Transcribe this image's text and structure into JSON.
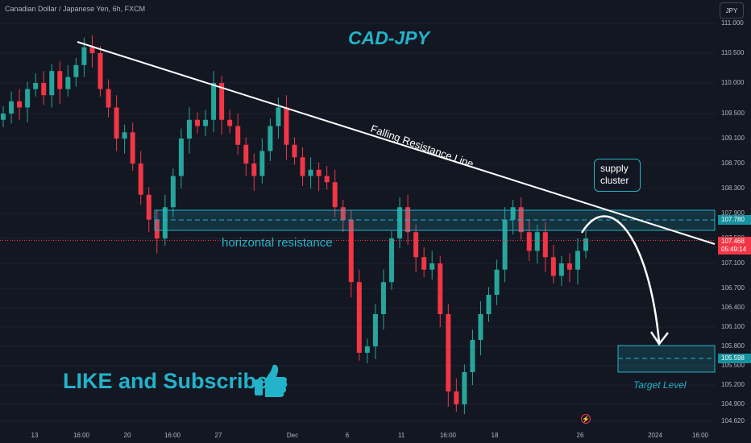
{
  "symbol_line": "Canadian Dollar / Japanese Yen, 6h, FXCM",
  "currency_button": "JPY",
  "pair_title": "CAD-JPY",
  "cta": {
    "text": "LIKE and Subscribe",
    "icon": "thumbs-up-icon"
  },
  "colors": {
    "background": "#131722",
    "up": "#26a69a",
    "down": "#f23645",
    "accent": "#22b3c9",
    "line": "#ffffff"
  },
  "chart_data": {
    "type": "candlestick",
    "title": "CAD-JPY",
    "ylim": [
      104.55,
      111.1
    ],
    "y_ticks": [
      "111.000",
      "110.500",
      "110.000",
      "109.500",
      "109.100",
      "108.700",
      "108.300",
      "107.900",
      "107.500",
      "107.100",
      "106.700",
      "106.400",
      "106.100",
      "105.800",
      "105.500",
      "105.200",
      "104.900",
      "104.620"
    ],
    "x_ticks": [
      "13",
      "16:00",
      "20",
      "16:00",
      "27",
      "Dec",
      "6",
      "11",
      "16:00",
      "18",
      "26",
      "2024",
      "16:00"
    ],
    "close_series": [
      109.5,
      109.7,
      109.6,
      109.9,
      110.0,
      109.8,
      110.2,
      109.9,
      110.1,
      110.3,
      110.6,
      110.5,
      109.9,
      109.6,
      109.1,
      109.2,
      108.7,
      108.2,
      107.8,
      107.5,
      108.0,
      108.5,
      109.1,
      109.4,
      109.3,
      109.4,
      110.0,
      109.4,
      109.3,
      109.0,
      108.7,
      108.5,
      108.9,
      109.3,
      109.6,
      109.0,
      108.8,
      108.5,
      108.6,
      108.5,
      108.4,
      108.0,
      107.8,
      106.8,
      105.7,
      105.8,
      106.3,
      106.8,
      107.5,
      108.0,
      107.6,
      107.2,
      107.0,
      107.1,
      106.3,
      105.1,
      104.9,
      105.4,
      105.9,
      106.3,
      106.6,
      107.0,
      107.8,
      108.0,
      107.6,
      107.3,
      107.6,
      107.2,
      106.9,
      107.1,
      107.0,
      107.3,
      107.5
    ],
    "last_price": "107.468",
    "countdown": "05:49:14",
    "resistance_price": "107.780",
    "target_price": "105.598",
    "annotations": {
      "trendline": "Falling Resistance Line",
      "zone": "horizontal resistance",
      "supply_box": [
        "supply",
        "cluster"
      ],
      "target": "Target Level"
    }
  }
}
